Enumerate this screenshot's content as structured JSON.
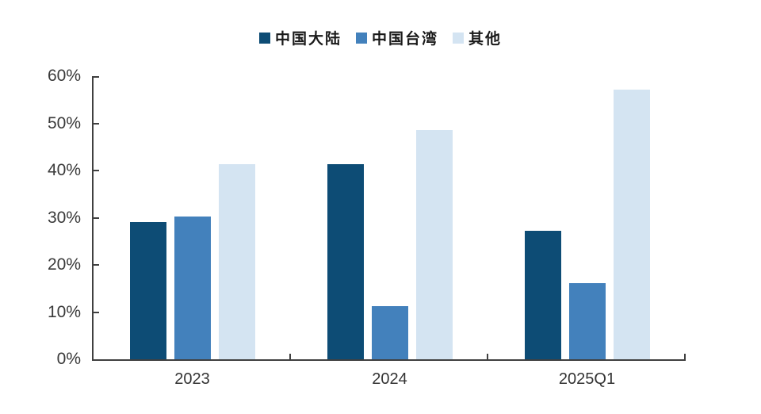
{
  "chart_data": {
    "type": "bar",
    "title": "",
    "categories": [
      "2023",
      "2024",
      "2025Q1"
    ],
    "series": [
      {
        "name": "中国大陆",
        "color": "#0d4c75",
        "values": [
          29.0,
          41.3,
          27.2
        ]
      },
      {
        "name": "中国台湾",
        "color": "#4381bc",
        "values": [
          30.2,
          11.2,
          16.1
        ]
      },
      {
        "name": "其他",
        "color": "#d4e4f2",
        "values": [
          41.3,
          48.5,
          57.1
        ]
      }
    ],
    "ylabel": "",
    "xlabel": "",
    "ylim": [
      0,
      60
    ],
    "yticks": [
      0,
      10,
      20,
      30,
      40,
      50,
      60
    ],
    "ytick_suffix": "%",
    "legend_position": "top-center",
    "grid": false,
    "colors": {
      "axis": "#404040",
      "tick_label": "#3a3a3a",
      "legend_text": "#1a1a1a",
      "background": "#ffffff"
    }
  }
}
